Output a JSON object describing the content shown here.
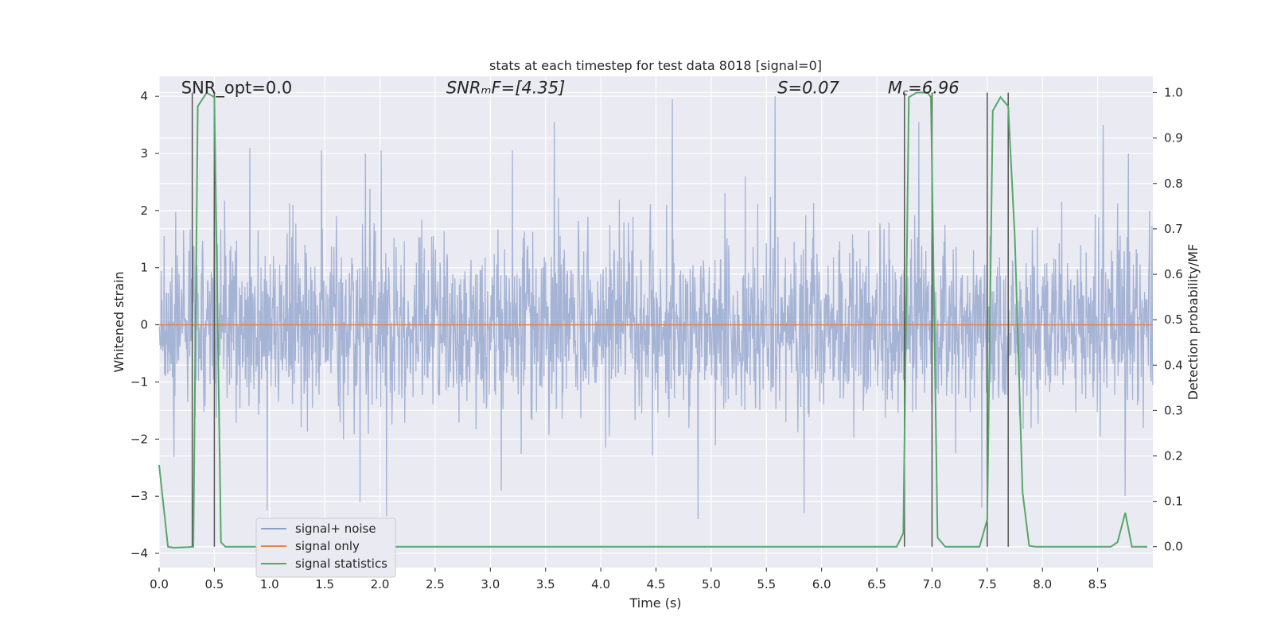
{
  "chart_data": {
    "type": "line",
    "title": "stats at each timestep for test data 8018 [signal=0]",
    "xlabel": "Time (s)",
    "ylabel": "Whitened strain",
    "ylabel_right": "Detection probability/MF",
    "xlim": [
      0,
      9.0
    ],
    "ylim": [
      -4.25,
      4.35
    ],
    "ylim_right": [
      -0.046,
      1.036
    ],
    "x_ticks": [
      "0.0",
      "0.5",
      "1.0",
      "1.5",
      "2.0",
      "2.5",
      "3.0",
      "3.5",
      "4.0",
      "4.5",
      "5.0",
      "5.5",
      "6.0",
      "6.5",
      "7.0",
      "7.5",
      "8.0",
      "8.5"
    ],
    "x_tick_values": [
      0,
      0.5,
      1.0,
      1.5,
      2.0,
      2.5,
      3.0,
      3.5,
      4.0,
      4.5,
      5.0,
      5.5,
      6.0,
      6.5,
      7.0,
      7.5,
      8.0,
      8.5
    ],
    "y_ticks": [
      "−4",
      "−3",
      "−2",
      "−1",
      "0",
      "1",
      "2",
      "3",
      "4"
    ],
    "y_tick_values": [
      -4,
      -3,
      -2,
      -1,
      0,
      1,
      2,
      3,
      4
    ],
    "y_ticks_right": [
      "0.0",
      "0.1",
      "0.2",
      "0.3",
      "0.4",
      "0.5",
      "0.6",
      "0.7",
      "0.8",
      "0.9",
      "1.0"
    ],
    "y_tick_values_right": [
      0,
      0.1,
      0.2,
      0.3,
      0.4,
      0.5,
      0.6,
      0.7,
      0.8,
      0.9,
      1.0
    ],
    "grid": true,
    "annotations": [
      {
        "text": "SNR_opt=0.0",
        "x": 0.2,
        "y": 4.05
      },
      {
        "text": "SNRₘF=[4.35]",
        "x": 2.6,
        "y": 4.05
      },
      {
        "text": "S=0.07",
        "x": 5.6,
        "y": 4.05
      },
      {
        "text": "M꜀=6.96",
        "x": 6.6,
        "y": 4.05
      }
    ],
    "legend": {
      "position": "lower-left",
      "entries": [
        {
          "label": "signal+ noise",
          "color": "#8da0cb"
        },
        {
          "label": "signal only",
          "color": "#dd8452"
        },
        {
          "label": "signal statistics",
          "color": "#55a868"
        }
      ]
    },
    "series": [
      {
        "name": "signal+ noise",
        "color": "#8da0cb",
        "description_values": {
          "t_start": 0,
          "t_end": 9.0,
          "typical_envelope": [
            -2.0,
            2.2
          ],
          "max": 4.0,
          "min": -3.4
        },
        "peaks": [
          [
            0.5,
            2.85
          ],
          [
            0.82,
            3.1
          ],
          [
            1.47,
            3.05
          ],
          [
            1.87,
            3.0
          ],
          [
            2.01,
            3.05
          ],
          [
            3.2,
            3.05
          ],
          [
            3.58,
            3.55
          ],
          [
            4.65,
            3.95
          ],
          [
            5.58,
            4.0
          ],
          [
            6.88,
            3.55
          ],
          [
            8.55,
            3.5
          ],
          [
            8.78,
            3.0
          ]
        ],
        "troughs": [
          [
            0.98,
            -3.25
          ],
          [
            1.82,
            -3.1
          ],
          [
            2.06,
            -3.35
          ],
          [
            3.1,
            -2.9
          ],
          [
            4.88,
            -3.4
          ],
          [
            5.84,
            -3.3
          ],
          [
            7.45,
            -3.2
          ],
          [
            8.75,
            -3.0
          ]
        ]
      },
      {
        "name": "signal only",
        "color": "#dd8452",
        "x": [
          0,
          9.0
        ],
        "y": [
          0,
          0
        ]
      },
      {
        "name": "signal statistics",
        "color": "#55a868",
        "axis": "right",
        "x": [
          0.0,
          0.08,
          0.13,
          0.26,
          0.31,
          0.35,
          0.43,
          0.5,
          0.56,
          0.6,
          0.65,
          1.0,
          6.68,
          6.74,
          6.79,
          6.86,
          6.96,
          6.99,
          7.05,
          7.12,
          7.43,
          7.5,
          7.55,
          7.62,
          7.69,
          7.75,
          7.82,
          7.88,
          7.94,
          8.62,
          8.68,
          8.75,
          8.81,
          8.95
        ],
        "y": [
          0.18,
          0.0,
          -0.002,
          -0.001,
          0.0,
          0.97,
          1.0,
          0.99,
          0.01,
          0.0,
          0.0,
          0.0,
          0.0,
          0.03,
          0.99,
          1.0,
          1.0,
          0.99,
          0.02,
          0.0,
          0.0,
          0.06,
          0.96,
          0.99,
          0.97,
          0.68,
          0.12,
          0.002,
          0.0,
          0.0,
          0.01,
          0.075,
          0.0,
          0.0
        ]
      }
    ],
    "vertical_lines": [
      0.3,
      0.5,
      6.75,
      7.0,
      7.5,
      7.69
    ],
    "vertical_line_range_right": [
      0.0,
      1.0
    ]
  }
}
